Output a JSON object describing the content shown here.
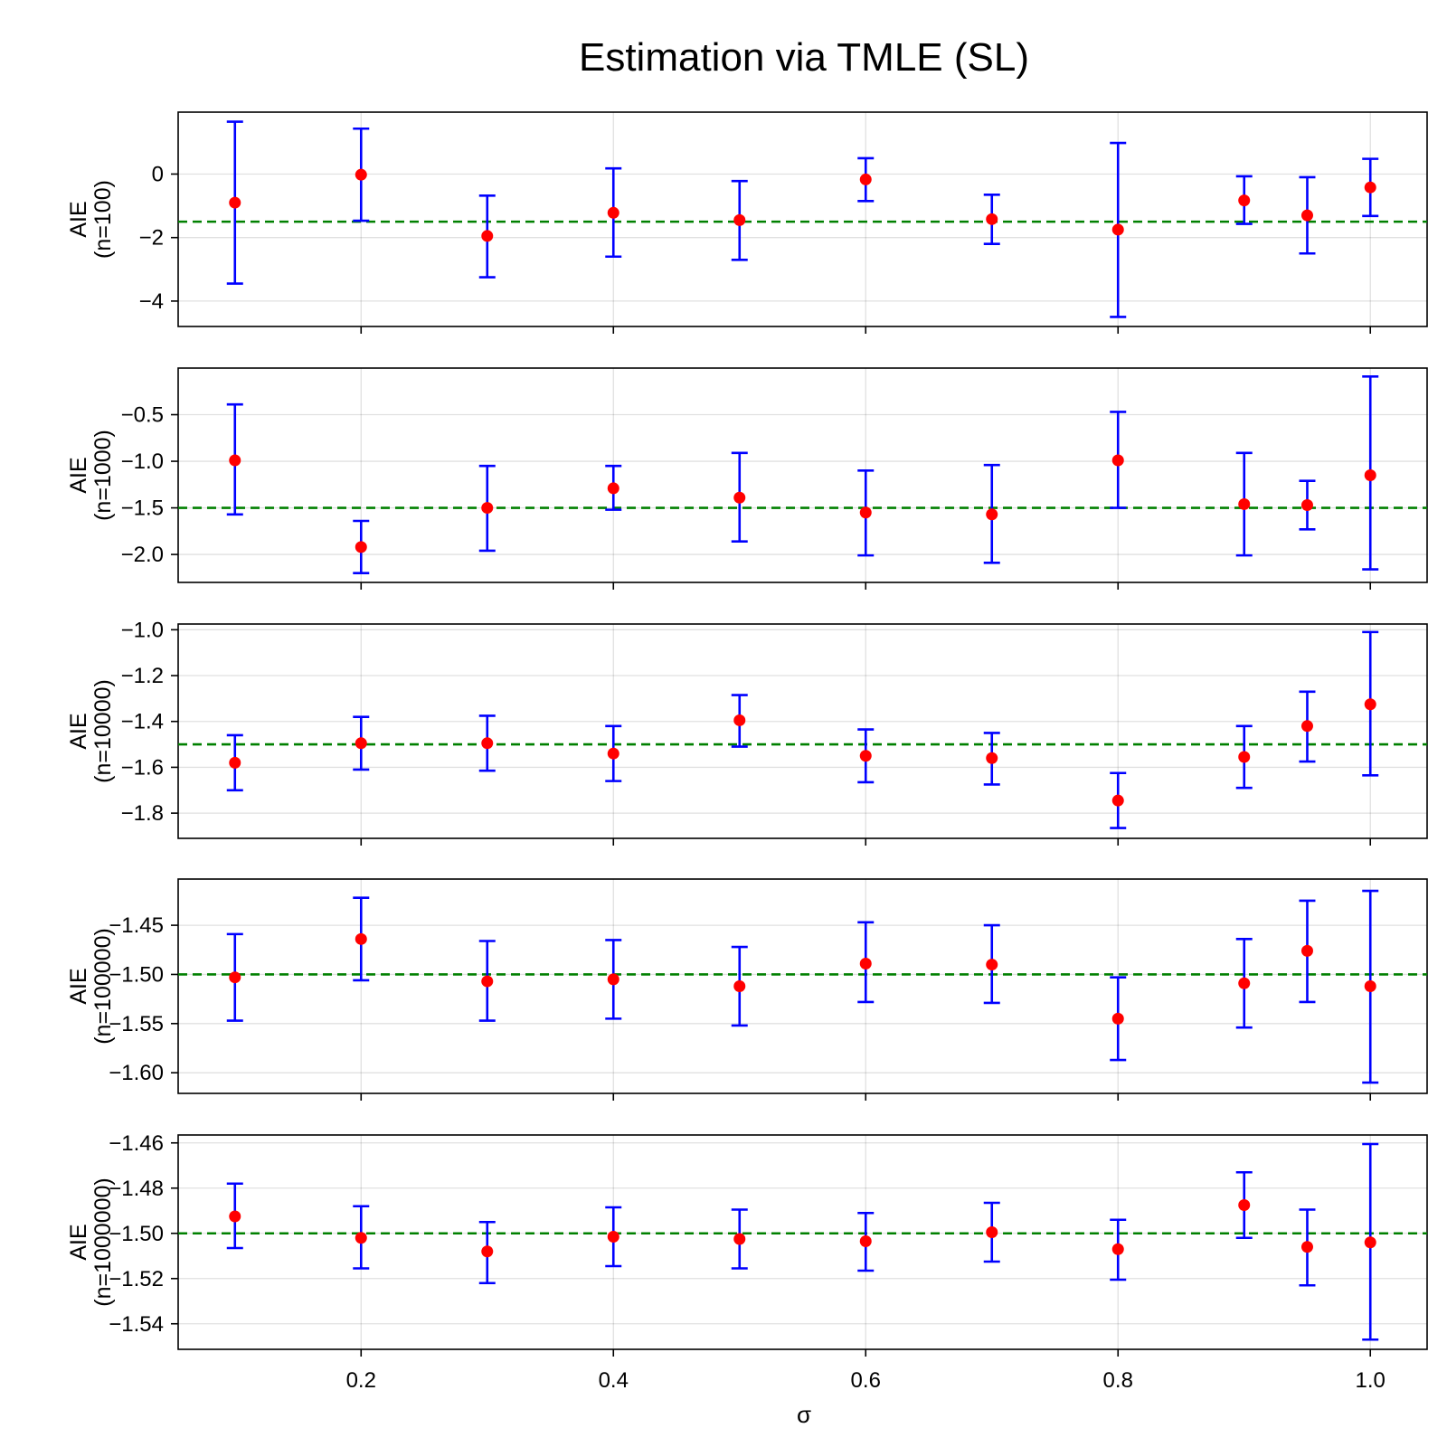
{
  "title": "Estimation via TMLE (SL)",
  "colors": {
    "errorbar": "#0000ff",
    "point": "#ff0000",
    "reference": "#008000"
  },
  "chart_data": [
    {
      "type": "scatter",
      "ylabel": "AIE",
      "ylabel_sub": "(n=100)",
      "xlim": [
        0.055,
        1.045
      ],
      "ylim": [
        -4.8,
        1.95
      ],
      "yticks": [
        0,
        -2,
        -4
      ],
      "ytick_labels": [
        "0",
        "−2",
        "−4"
      ],
      "reference": -1.5,
      "x": [
        0.1,
        0.2,
        0.3,
        0.4,
        0.5,
        0.6,
        0.7,
        0.8,
        0.9,
        0.95,
        1.0
      ],
      "y": [
        -0.9,
        -0.02,
        -1.95,
        -1.22,
        -1.45,
        -0.17,
        -1.42,
        -1.75,
        -0.83,
        -1.3,
        -0.42
      ],
      "lower": [
        -3.45,
        -1.47,
        -3.25,
        -2.6,
        -2.7,
        -0.85,
        -2.2,
        -4.5,
        -1.57,
        -2.5,
        -1.32
      ],
      "upper": [
        1.65,
        1.43,
        -0.68,
        0.18,
        -0.22,
        0.5,
        -0.65,
        0.98,
        -0.07,
        -0.1,
        0.48
      ]
    },
    {
      "type": "scatter",
      "ylabel": "AIE",
      "ylabel_sub": "(n=1000)",
      "xlim": [
        0.055,
        1.045
      ],
      "ylim": [
        -2.3,
        0.0
      ],
      "yticks": [
        -0.5,
        -1.0,
        -1.5,
        -2.0
      ],
      "ytick_labels": [
        "−0.5",
        "−1.0",
        "−1.5",
        "−2.0"
      ],
      "reference": -1.5,
      "x": [
        0.1,
        0.2,
        0.3,
        0.4,
        0.5,
        0.6,
        0.7,
        0.8,
        0.9,
        0.95,
        1.0
      ],
      "y": [
        -0.99,
        -1.92,
        -1.5,
        -1.29,
        -1.39,
        -1.55,
        -1.57,
        -0.99,
        -1.46,
        -1.47,
        -1.15
      ],
      "lower": [
        -1.57,
        -2.2,
        -1.96,
        -1.52,
        -1.86,
        -2.01,
        -2.09,
        -1.5,
        -2.01,
        -1.73,
        -2.16
      ],
      "upper": [
        -0.39,
        -1.64,
        -1.05,
        -1.05,
        -0.91,
        -1.1,
        -1.04,
        -0.47,
        -0.91,
        -1.21,
        -0.09
      ]
    },
    {
      "type": "scatter",
      "ylabel": "AIE",
      "ylabel_sub": "(n=10000)",
      "xlim": [
        0.055,
        1.045
      ],
      "ylim": [
        -1.91,
        -0.975
      ],
      "yticks": [
        -1.0,
        -1.2,
        -1.4,
        -1.6,
        -1.8
      ],
      "ytick_labels": [
        "−1.0",
        "−1.2",
        "−1.4",
        "−1.6",
        "−1.8"
      ],
      "reference": -1.5,
      "x": [
        0.1,
        0.2,
        0.3,
        0.4,
        0.5,
        0.6,
        0.7,
        0.8,
        0.9,
        0.95,
        1.0
      ],
      "y": [
        -1.58,
        -1.495,
        -1.495,
        -1.54,
        -1.395,
        -1.55,
        -1.56,
        -1.745,
        -1.555,
        -1.42,
        -1.325
      ],
      "lower": [
        -1.7,
        -1.61,
        -1.615,
        -1.66,
        -1.51,
        -1.665,
        -1.675,
        -1.865,
        -1.69,
        -1.575,
        -1.635
      ],
      "upper": [
        -1.46,
        -1.38,
        -1.375,
        -1.42,
        -1.285,
        -1.435,
        -1.45,
        -1.625,
        -1.42,
        -1.27,
        -1.01
      ]
    },
    {
      "type": "scatter",
      "ylabel": "AIE",
      "ylabel_sub": "(n=100000)",
      "xlim": [
        0.055,
        1.045
      ],
      "ylim": [
        -1.621,
        -1.403
      ],
      "yticks": [
        -1.45,
        -1.5,
        -1.55,
        -1.6
      ],
      "ytick_labels": [
        "−1.45",
        "−1.50",
        "−1.55",
        "−1.60"
      ],
      "reference": -1.5,
      "x": [
        0.1,
        0.2,
        0.3,
        0.4,
        0.5,
        0.6,
        0.7,
        0.8,
        0.9,
        0.95,
        1.0
      ],
      "y": [
        -1.503,
        -1.464,
        -1.507,
        -1.505,
        -1.512,
        -1.489,
        -1.49,
        -1.545,
        -1.509,
        -1.476,
        -1.512
      ],
      "lower": [
        -1.547,
        -1.506,
        -1.547,
        -1.545,
        -1.552,
        -1.528,
        -1.529,
        -1.587,
        -1.554,
        -1.528,
        -1.61
      ],
      "upper": [
        -1.459,
        -1.422,
        -1.466,
        -1.465,
        -1.472,
        -1.447,
        -1.45,
        -1.503,
        -1.464,
        -1.425,
        -1.415
      ]
    },
    {
      "type": "scatter",
      "ylabel": "AIE",
      "ylabel_sub": "(n=1000000)",
      "xlim": [
        0.055,
        1.045
      ],
      "ylim": [
        -1.5513,
        -1.4565
      ],
      "yticks": [
        -1.46,
        -1.48,
        -1.5,
        -1.52,
        -1.54
      ],
      "ytick_labels": [
        "−1.46",
        "−1.48",
        "−1.50",
        "−1.52",
        "−1.54"
      ],
      "reference": -1.5,
      "x": [
        0.1,
        0.2,
        0.3,
        0.4,
        0.5,
        0.6,
        0.7,
        0.8,
        0.9,
        0.95,
        1.0
      ],
      "y": [
        -1.4925,
        -1.502,
        -1.508,
        -1.5015,
        -1.5025,
        -1.5035,
        -1.4995,
        -1.507,
        -1.4875,
        -1.506,
        -1.504
      ],
      "lower": [
        -1.5065,
        -1.5155,
        -1.522,
        -1.5145,
        -1.5155,
        -1.5165,
        -1.5125,
        -1.5205,
        -1.502,
        -1.523,
        -1.547
      ],
      "upper": [
        -1.478,
        -1.488,
        -1.495,
        -1.4885,
        -1.4895,
        -1.491,
        -1.4865,
        -1.494,
        -1.473,
        -1.4895,
        -1.4605
      ]
    }
  ],
  "x_axis": {
    "label": "σ",
    "ticks": [
      0.2,
      0.4,
      0.6,
      0.8,
      1.0
    ],
    "tick_labels": [
      "0.2",
      "0.4",
      "0.6",
      "0.8",
      "1.0"
    ]
  }
}
